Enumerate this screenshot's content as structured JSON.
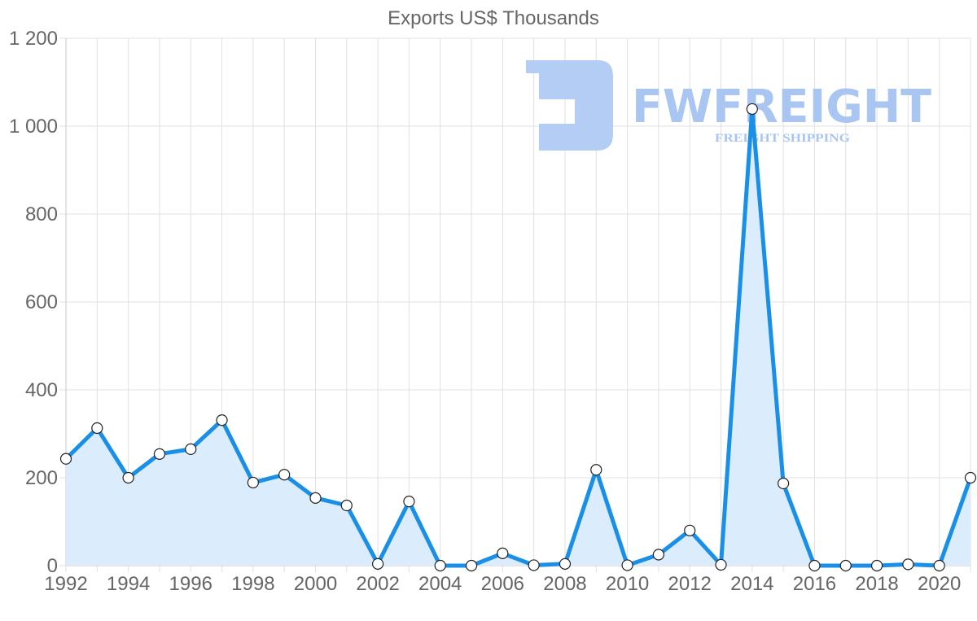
{
  "chart_data": {
    "type": "line",
    "title": "Exports US$ Thousands",
    "xlabel": "",
    "ylabel": "",
    "x": [
      1992,
      1993,
      1994,
      1995,
      1996,
      1997,
      1998,
      1999,
      2000,
      2001,
      2002,
      2003,
      2004,
      2005,
      2006,
      2007,
      2008,
      2009,
      2010,
      2011,
      2012,
      2013,
      2014,
      2015,
      2016,
      2017,
      2018,
      2019,
      2020,
      2021
    ],
    "series": [
      {
        "name": "Exports US$ Thousands",
        "values": [
          243,
          313,
          200,
          254,
          265,
          331,
          189,
          207,
          154,
          137,
          4,
          146,
          0,
          0,
          28,
          1,
          4,
          218,
          1,
          25,
          80,
          2,
          1039,
          187,
          0,
          0,
          0,
          3,
          0,
          200
        ],
        "color": "#1a8fe8",
        "fill": "#dbedfc",
        "filled": true
      }
    ],
    "ylim": [
      0,
      1200
    ],
    "y_ticks": [
      "0",
      "200",
      "400",
      "600",
      "800",
      "1 000",
      "1 200"
    ],
    "y_tick_values": [
      0,
      200,
      400,
      600,
      800,
      1000,
      1200
    ],
    "x_ticks": [
      "1992",
      "1994",
      "1996",
      "1998",
      "2000",
      "2002",
      "2004",
      "2006",
      "2008",
      "2010",
      "2012",
      "2014",
      "2016",
      "2018",
      "2020"
    ],
    "grid": true,
    "legend": "none"
  },
  "watermark": {
    "brand": "FWFREIGHT",
    "tagline": "FREIGHT SHIPPING",
    "color": "#a9c5f2"
  },
  "colors": {
    "line": "#1a8fe8",
    "area": "#dbedfc",
    "grid": "#e0e0e0",
    "text": "#666666"
  }
}
